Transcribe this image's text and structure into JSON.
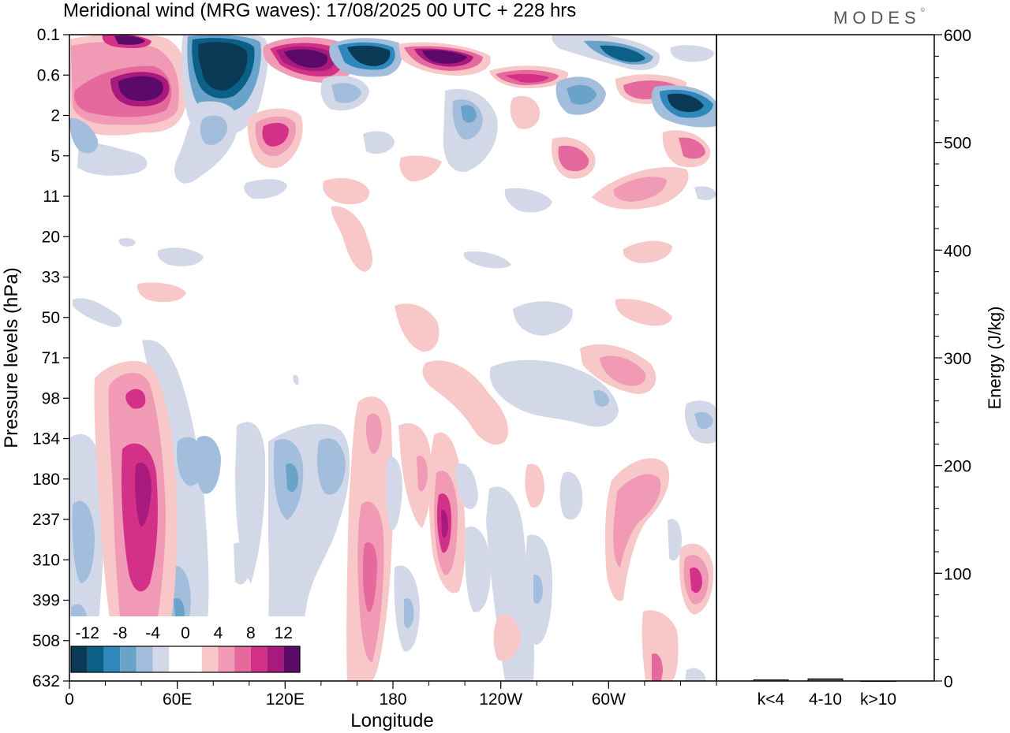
{
  "title": "Meridional wind (MRG waves):  17/08/2025  00 UTC  + 228 hrs",
  "logo": "MODES",
  "logo_mark": "©",
  "chart_data": [
    {
      "type": "heatmap",
      "title": "Meridional wind (MRG waves)",
      "xlabel": "Longitude",
      "ylabel": "Pressure levels (hPa)",
      "x_ticks": [
        "0",
        "60E",
        "120E",
        "180",
        "120W",
        "60W"
      ],
      "x_tick_positions_deg": [
        0,
        60,
        120,
        180,
        240,
        300
      ],
      "xlim": [
        0,
        360
      ],
      "y_ticks": [
        "0.1",
        "0.6",
        "2",
        "5",
        "11",
        "20",
        "33",
        "50",
        "71",
        "98",
        "134",
        "180",
        "237",
        "310",
        "399",
        "508",
        "632"
      ],
      "colorbar": {
        "labels": [
          "-12",
          "-8",
          "-4",
          "0",
          "4",
          "8",
          "12"
        ],
        "levels": [
          -14,
          -12,
          -10,
          -8,
          -6,
          -4,
          -2,
          0,
          2,
          4,
          6,
          8,
          10,
          12,
          14
        ],
        "colors": [
          "#0a3a55",
          "#0c5f87",
          "#2f88bb",
          "#6aa3ca",
          "#a3bedc",
          "#d2d8e8",
          "#ffffff",
          "#ffffff",
          "#f8c8c8",
          "#f19ab6",
          "#e6699e",
          "#d33088",
          "#a81a7d",
          "#5b0a6a"
        ]
      },
      "features": [
        {
          "name": "upper-negative-80E",
          "lon": 82,
          "level": "0.1-0.6",
          "value": -14
        },
        {
          "name": "upper-positive-40E",
          "lon": 42,
          "level": "0.6",
          "value": 14
        },
        {
          "name": "upper-positive-125E",
          "lon": 127,
          "level": "0.1",
          "value": 14
        },
        {
          "name": "upper-positive-210E",
          "lon": 213,
          "level": "0.1",
          "value": 14
        },
        {
          "name": "upper-negative-170E",
          "lon": 170,
          "level": "0.1",
          "value": -14
        },
        {
          "name": "upper-negative-335E",
          "lon": 340,
          "level": "0.6",
          "value": -14
        },
        {
          "name": "lower-positive-40E",
          "lon": 42,
          "level": "180-237",
          "value": 10
        },
        {
          "name": "lower-positive-200E",
          "lon": 200,
          "level": "237",
          "value": 10
        },
        {
          "name": "lower-positive-165E",
          "lon": 165,
          "level": "310-399",
          "value": 8
        }
      ]
    },
    {
      "type": "bar",
      "categories": [
        "k<4",
        "4-10",
        "k>10"
      ],
      "values": [
        1,
        2,
        0
      ],
      "ylabel": "Energy (J/kg)",
      "ylim": [
        0,
        600
      ],
      "y_ticks": [
        "0",
        "100",
        "200",
        "300",
        "400",
        "500",
        "600"
      ]
    }
  ]
}
